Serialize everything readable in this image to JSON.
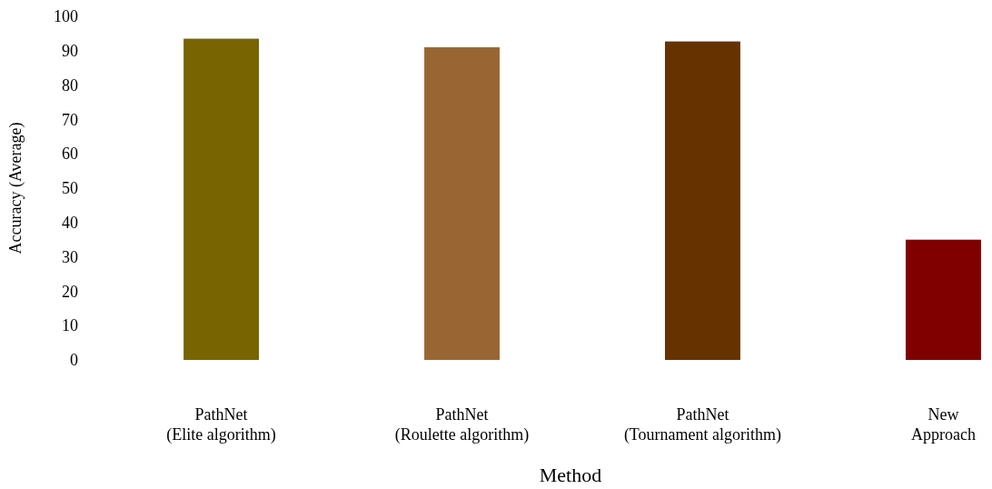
{
  "chart_data": {
    "type": "bar",
    "xlabel": "Method",
    "ylabel": "Accuracy (Average)",
    "categories": [
      "PathNet\n(Elite algorithm)",
      "PathNet\n(Roulette algorithm)",
      "PathNet\n(Tournament algorithm)",
      "New\nApproach"
    ],
    "values": [
      93.5,
      91,
      92.7,
      35
    ],
    "colors": [
      "#786400",
      "#996633",
      "#663300",
      "#800000"
    ],
    "ylim": [
      0,
      100
    ],
    "yticks": [
      0,
      10,
      20,
      30,
      40,
      50,
      60,
      70,
      80,
      90,
      100
    ],
    "grid": false
  }
}
